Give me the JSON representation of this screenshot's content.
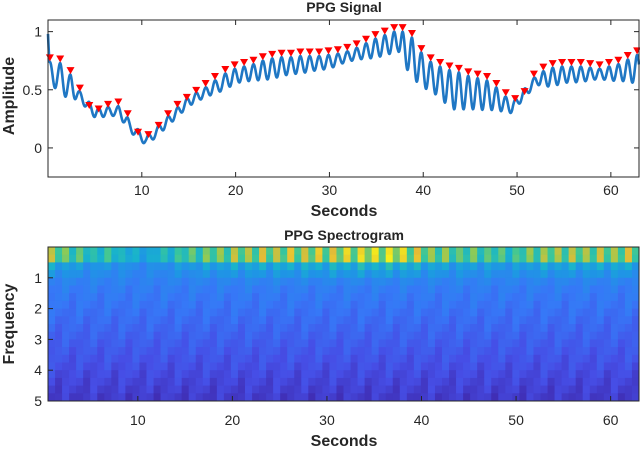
{
  "colors": {
    "signal": "#1f77c4",
    "peak_marker": "#ff0000",
    "axes": "#262626"
  },
  "chart_data": [
    {
      "type": "line",
      "title": "PPG Signal",
      "xlabel": "Seconds",
      "ylabel": "Amplitude",
      "xlim": [
        0,
        63
      ],
      "ylim": [
        -0.25,
        1.1
      ],
      "xticks": [
        10,
        20,
        30,
        40,
        50,
        60
      ],
      "yticks": [
        0,
        0.5,
        1
      ],
      "grid": false,
      "trend": {
        "x": [
          0,
          1,
          3,
          5,
          7.5,
          9,
          10.5,
          12,
          15,
          20,
          25,
          30,
          35,
          37.3,
          40,
          43,
          47,
          49.5,
          52,
          55,
          60,
          63
        ],
        "y": [
          0.64,
          0.62,
          0.48,
          0.3,
          0.32,
          0.16,
          0.06,
          0.17,
          0.4,
          0.62,
          0.7,
          0.74,
          0.86,
          0.92,
          0.66,
          0.5,
          0.45,
          0.35,
          0.58,
          0.63,
          0.64,
          0.68
        ]
      },
      "peaks": {
        "x": [
          0.2,
          1.3,
          2.4,
          3.4,
          4.4,
          5.4,
          6.4,
          7.5,
          8.5,
          9.6,
          10.7,
          11.8,
          12.8,
          13.8,
          14.8,
          15.8,
          16.8,
          17.8,
          18.9,
          19.9,
          20.9,
          21.9,
          22.9,
          23.9,
          24.9,
          25.9,
          26.9,
          27.9,
          28.9,
          29.9,
          30.9,
          31.9,
          32.9,
          33.9,
          34.9,
          35.9,
          36.9,
          37.8,
          38.8,
          39.8,
          40.8,
          41.8,
          42.8,
          43.8,
          44.8,
          45.8,
          46.8,
          47.8,
          48.8,
          49.8,
          50.8,
          51.8,
          52.8,
          53.8,
          54.8,
          55.8,
          56.8,
          57.8,
          58.8,
          59.8,
          60.8,
          61.8,
          62.8
        ],
        "y": [
          0.74,
          0.73,
          0.63,
          0.48,
          0.33,
          0.3,
          0.34,
          0.36,
          0.26,
          0.1,
          0.08,
          0.16,
          0.26,
          0.34,
          0.4,
          0.46,
          0.52,
          0.58,
          0.64,
          0.68,
          0.7,
          0.72,
          0.75,
          0.77,
          0.78,
          0.78,
          0.79,
          0.79,
          0.79,
          0.8,
          0.81,
          0.83,
          0.86,
          0.9,
          0.94,
          0.97,
          1.0,
          1.0,
          0.95,
          0.82,
          0.74,
          0.7,
          0.67,
          0.65,
          0.62,
          0.6,
          0.58,
          0.52,
          0.44,
          0.39,
          0.45,
          0.6,
          0.66,
          0.69,
          0.7,
          0.7,
          0.7,
          0.69,
          0.68,
          0.7,
          0.72,
          0.76,
          0.8
        ]
      }
    },
    {
      "type": "heatmap",
      "title": "PPG Spectrogram",
      "xlabel": "Seconds",
      "ylabel": "Frequency",
      "xlim": [
        0.5,
        63
      ],
      "ylim": [
        0,
        5
      ],
      "y_direction": "down",
      "xticks": [
        10,
        20,
        30,
        40,
        50,
        60
      ],
      "yticks": [
        1,
        2,
        3,
        4,
        5
      ],
      "time_bins": 84,
      "freq_bins": 20,
      "colormap": "parula"
    }
  ]
}
